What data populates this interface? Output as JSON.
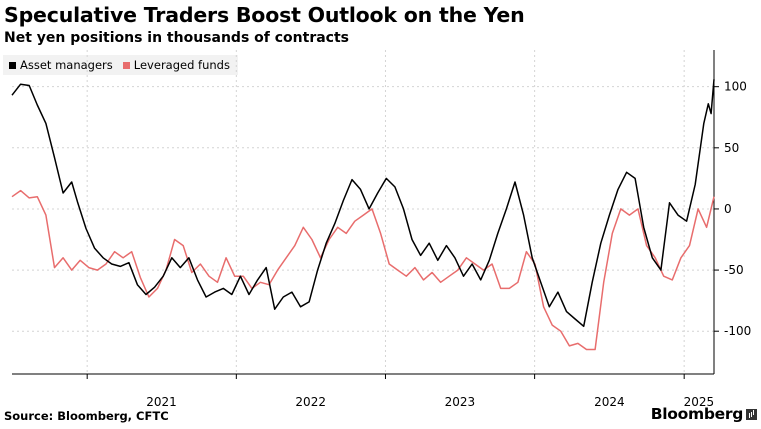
{
  "header": {
    "title": "Speculative Traders Boost Outlook on the Yen",
    "subtitle": "Net yen positions in thousands of contracts"
  },
  "footer": {
    "source": "Source: Bloomberg, CFTC",
    "logo_text": "Bloomberg"
  },
  "colors": {
    "asset_managers": "#000000",
    "leveraged_funds": "#e86d6d",
    "grid": "#d4d4d4",
    "legend_bg": "#f2f2f2"
  },
  "chart_data": {
    "type": "line",
    "title": "Speculative Traders Boost Outlook on the Yen",
    "subtitle": "Net yen positions in thousands of contracts",
    "xlabel": "",
    "ylabel": "",
    "x_axis": {
      "tick_labels": [
        "2021",
        "2022",
        "2023",
        "2024",
        "2025"
      ],
      "range": [
        "2020-07-01",
        "2025-03-15"
      ]
    },
    "y_axis": {
      "ticks": [
        100,
        50,
        0,
        -50,
        -100
      ],
      "tick_labels": [
        "100",
        "50",
        "0",
        "-50",
        "-100"
      ],
      "range": [
        -135,
        130
      ],
      "position": "right"
    },
    "grid": true,
    "legend": {
      "placement": "top-left"
    },
    "series": [
      {
        "name": "Asset managers",
        "color": "#000000",
        "points": [
          [
            "2020-07-01",
            93
          ],
          [
            "2020-07-22",
            102
          ],
          [
            "2020-08-12",
            101
          ],
          [
            "2020-09-01",
            85
          ],
          [
            "2020-09-22",
            70
          ],
          [
            "2020-10-13",
            42
          ],
          [
            "2020-11-03",
            13
          ],
          [
            "2020-11-24",
            22
          ],
          [
            "2020-12-08",
            6
          ],
          [
            "2020-12-29",
            -16
          ],
          [
            "2021-01-19",
            -32
          ],
          [
            "2021-02-09",
            -40
          ],
          [
            "2021-03-02",
            -45
          ],
          [
            "2021-03-23",
            -47
          ],
          [
            "2021-04-13",
            -44
          ],
          [
            "2021-05-04",
            -62
          ],
          [
            "2021-05-25",
            -70
          ],
          [
            "2021-06-15",
            -64
          ],
          [
            "2021-07-06",
            -55
          ],
          [
            "2021-07-27",
            -40
          ],
          [
            "2021-08-17",
            -48
          ],
          [
            "2021-09-07",
            -40
          ],
          [
            "2021-09-28",
            -58
          ],
          [
            "2021-10-19",
            -72
          ],
          [
            "2021-11-09",
            -68
          ],
          [
            "2021-11-30",
            -65
          ],
          [
            "2021-12-21",
            -70
          ],
          [
            "2022-01-11",
            -55
          ],
          [
            "2022-02-01",
            -70
          ],
          [
            "2022-02-22",
            -58
          ],
          [
            "2022-03-15",
            -48
          ],
          [
            "2022-04-05",
            -82
          ],
          [
            "2022-04-26",
            -72
          ],
          [
            "2022-05-17",
            -68
          ],
          [
            "2022-06-07",
            -80
          ],
          [
            "2022-06-28",
            -76
          ],
          [
            "2022-07-19",
            -50
          ],
          [
            "2022-08-09",
            -28
          ],
          [
            "2022-08-30",
            -12
          ],
          [
            "2022-09-20",
            7
          ],
          [
            "2022-10-11",
            24
          ],
          [
            "2022-11-01",
            16
          ],
          [
            "2022-11-22",
            0
          ],
          [
            "2022-12-13",
            13
          ],
          [
            "2023-01-03",
            25
          ],
          [
            "2023-01-24",
            18
          ],
          [
            "2023-02-14",
            0
          ],
          [
            "2023-03-07",
            -25
          ],
          [
            "2023-03-28",
            -38
          ],
          [
            "2023-04-18",
            -28
          ],
          [
            "2023-05-09",
            -42
          ],
          [
            "2023-05-30",
            -30
          ],
          [
            "2023-06-20",
            -40
          ],
          [
            "2023-07-11",
            -55
          ],
          [
            "2023-08-01",
            -45
          ],
          [
            "2023-08-22",
            -58
          ],
          [
            "2023-09-12",
            -42
          ],
          [
            "2023-10-03",
            -20
          ],
          [
            "2023-10-24",
            0
          ],
          [
            "2023-11-14",
            22
          ],
          [
            "2023-12-05",
            -5
          ],
          [
            "2023-12-26",
            -40
          ],
          [
            "2024-01-16",
            -60
          ],
          [
            "2024-02-06",
            -80
          ],
          [
            "2024-02-27",
            -68
          ],
          [
            "2024-03-19",
            -84
          ],
          [
            "2024-04-09",
            -90
          ],
          [
            "2024-04-30",
            -96
          ],
          [
            "2024-05-21",
            -60
          ],
          [
            "2024-06-11",
            -28
          ],
          [
            "2024-07-02",
            -5
          ],
          [
            "2024-07-23",
            16
          ],
          [
            "2024-08-13",
            30
          ],
          [
            "2024-09-03",
            25
          ],
          [
            "2024-09-24",
            -15
          ],
          [
            "2024-10-15",
            -40
          ],
          [
            "2024-11-05",
            -50
          ],
          [
            "2024-11-26",
            5
          ],
          [
            "2024-12-17",
            -5
          ],
          [
            "2025-01-07",
            -10
          ],
          [
            "2025-01-28",
            20
          ],
          [
            "2025-02-18",
            70
          ],
          [
            "2025-03-01",
            86
          ],
          [
            "2025-03-08",
            78
          ],
          [
            "2025-03-15",
            106
          ]
        ]
      },
      {
        "name": "Leveraged funds",
        "color": "#e86d6d",
        "points": [
          [
            "2020-07-01",
            10
          ],
          [
            "2020-07-22",
            15
          ],
          [
            "2020-08-12",
            9
          ],
          [
            "2020-09-01",
            10
          ],
          [
            "2020-09-22",
            -5
          ],
          [
            "2020-10-13",
            -48
          ],
          [
            "2020-11-03",
            -40
          ],
          [
            "2020-11-24",
            -50
          ],
          [
            "2020-12-15",
            -42
          ],
          [
            "2021-01-05",
            -48
          ],
          [
            "2021-01-26",
            -50
          ],
          [
            "2021-02-16",
            -45
          ],
          [
            "2021-03-09",
            -35
          ],
          [
            "2021-03-30",
            -40
          ],
          [
            "2021-04-20",
            -35
          ],
          [
            "2021-05-11",
            -56
          ],
          [
            "2021-06-01",
            -72
          ],
          [
            "2021-06-22",
            -65
          ],
          [
            "2021-07-13",
            -50
          ],
          [
            "2021-08-03",
            -25
          ],
          [
            "2021-08-24",
            -30
          ],
          [
            "2021-09-14",
            -52
          ],
          [
            "2021-10-05",
            -45
          ],
          [
            "2021-10-26",
            -55
          ],
          [
            "2021-11-16",
            -60
          ],
          [
            "2021-12-07",
            -40
          ],
          [
            "2021-12-28",
            -55
          ],
          [
            "2022-01-18",
            -55
          ],
          [
            "2022-02-08",
            -65
          ],
          [
            "2022-03-01",
            -60
          ],
          [
            "2022-03-22",
            -62
          ],
          [
            "2022-04-12",
            -50
          ],
          [
            "2022-05-03",
            -40
          ],
          [
            "2022-05-24",
            -30
          ],
          [
            "2022-06-14",
            -15
          ],
          [
            "2022-07-05",
            -25
          ],
          [
            "2022-07-26",
            -40
          ],
          [
            "2022-08-16",
            -25
          ],
          [
            "2022-09-06",
            -15
          ],
          [
            "2022-09-27",
            -20
          ],
          [
            "2022-10-18",
            -10
          ],
          [
            "2022-11-08",
            -5
          ],
          [
            "2022-11-29",
            0
          ],
          [
            "2022-12-20",
            -20
          ],
          [
            "2023-01-10",
            -45
          ],
          [
            "2023-01-31",
            -50
          ],
          [
            "2023-02-21",
            -55
          ],
          [
            "2023-03-14",
            -48
          ],
          [
            "2023-04-04",
            -58
          ],
          [
            "2023-04-25",
            -52
          ],
          [
            "2023-05-16",
            -60
          ],
          [
            "2023-06-06",
            -55
          ],
          [
            "2023-06-27",
            -50
          ],
          [
            "2023-07-18",
            -40
          ],
          [
            "2023-08-08",
            -45
          ],
          [
            "2023-08-29",
            -50
          ],
          [
            "2023-09-19",
            -45
          ],
          [
            "2023-10-10",
            -65
          ],
          [
            "2023-10-31",
            -65
          ],
          [
            "2023-11-21",
            -60
          ],
          [
            "2023-12-12",
            -35
          ],
          [
            "2024-01-02",
            -45
          ],
          [
            "2024-01-23",
            -80
          ],
          [
            "2024-02-13",
            -95
          ],
          [
            "2024-03-05",
            -100
          ],
          [
            "2024-03-26",
            -112
          ],
          [
            "2024-04-16",
            -110
          ],
          [
            "2024-05-07",
            -115
          ],
          [
            "2024-05-28",
            -115
          ],
          [
            "2024-06-18",
            -60
          ],
          [
            "2024-07-09",
            -20
          ],
          [
            "2024-07-30",
            0
          ],
          [
            "2024-08-20",
            -5
          ],
          [
            "2024-09-10",
            0
          ],
          [
            "2024-10-01",
            -30
          ],
          [
            "2024-10-22",
            -40
          ],
          [
            "2024-11-12",
            -55
          ],
          [
            "2024-12-03",
            -58
          ],
          [
            "2024-12-24",
            -40
          ],
          [
            "2025-01-14",
            -30
          ],
          [
            "2025-02-04",
            0
          ],
          [
            "2025-02-25",
            -15
          ],
          [
            "2025-03-15",
            10
          ]
        ]
      }
    ]
  }
}
